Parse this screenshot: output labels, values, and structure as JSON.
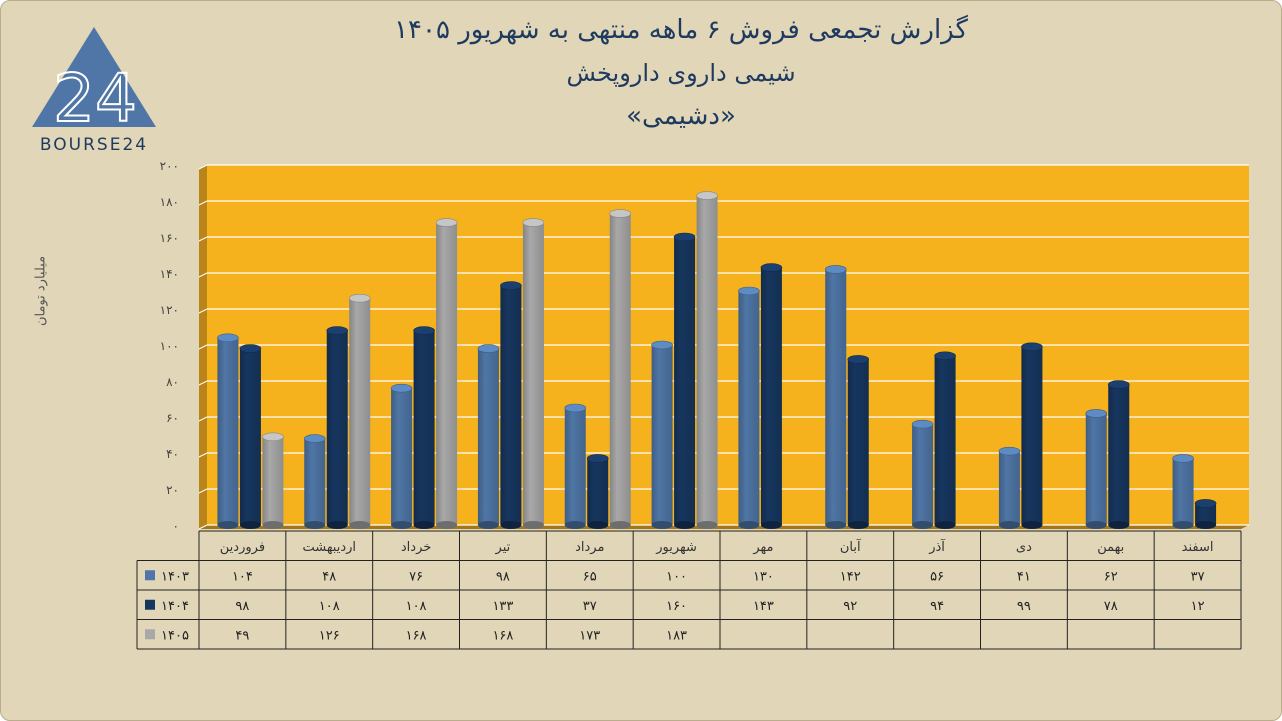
{
  "header": {
    "title_line1": "گزارش تجمعی فروش ۶ ماهه منتهی به شهریور ۱۴۰۵",
    "title_line2": "شیمی داروی داروپخش",
    "title_line3": "«دشیمی»"
  },
  "logo": {
    "text": "BOURSE24",
    "mark": "24",
    "icon": "triangle-logo-icon"
  },
  "colors": {
    "background": "#e1d6b8",
    "plot_area": "#f6b21c",
    "series_1403": "#4f76a6",
    "series_1404": "#17365f",
    "series_1405": "#a8a8a8",
    "title": "#1e3a5f"
  },
  "chart_data": {
    "type": "bar",
    "title": "گزارش تجمعی فروش ۶ ماهه منتهی به شهریور ۱۴۰۵",
    "ylabel": "میلیارد تومان",
    "ylim": [
      0,
      200
    ],
    "yticks": [
      "۰",
      "۲۰",
      "۴۰",
      "۶۰",
      "۸۰",
      "۱۰۰",
      "۱۲۰",
      "۱۴۰",
      "۱۶۰",
      "۱۸۰",
      "۲۰۰"
    ],
    "grid": true,
    "categories": [
      "فروردین",
      "اردیبهشت",
      "خرداد",
      "تیر",
      "مرداد",
      "شهریور",
      "مهر",
      "آبان",
      "آذر",
      "دی",
      "بهمن",
      "اسفند"
    ],
    "series": [
      {
        "name": "۱۴۰۳",
        "values": [
          104,
          48,
          76,
          98,
          65,
          100,
          130,
          142,
          56,
          41,
          62,
          37
        ],
        "labels": [
          "۱۰۴",
          "۴۸",
          "۷۶",
          "۹۸",
          "۶۵",
          "۱۰۰",
          "۱۳۰",
          "۱۴۲",
          "۵۶",
          "۴۱",
          "۶۲",
          "۳۷"
        ]
      },
      {
        "name": "۱۴۰۴",
        "values": [
          98,
          108,
          108,
          133,
          37,
          160,
          143,
          92,
          94,
          99,
          78,
          12
        ],
        "labels": [
          "۹۸",
          "۱۰۸",
          "۱۰۸",
          "۱۳۳",
          "۳۷",
          "۱۶۰",
          "۱۴۳",
          "۹۲",
          "۹۴",
          "۹۹",
          "۷۸",
          "۱۲"
        ]
      },
      {
        "name": "۱۴۰۵",
        "values": [
          49,
          126,
          168,
          168,
          173,
          183,
          null,
          null,
          null,
          null,
          null,
          null
        ],
        "labels": [
          "۴۹",
          "۱۲۶",
          "۱۶۸",
          "۱۶۸",
          "۱۷۳",
          "۱۸۳",
          "",
          "",
          "",
          "",
          "",
          ""
        ]
      }
    ]
  }
}
